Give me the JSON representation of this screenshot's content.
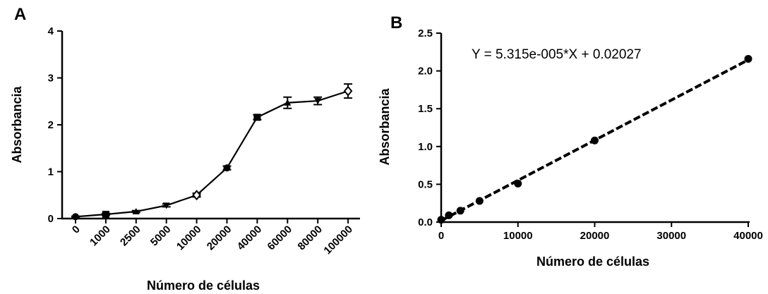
{
  "chart_data": [
    {
      "panel": "A",
      "type": "line",
      "xlabel": "Número de células",
      "ylabel": "Absorbancia",
      "categories": [
        "0",
        "1000",
        "2500",
        "5000",
        "10000",
        "20000",
        "40000",
        "60000",
        "80000",
        "100000"
      ],
      "ylim": [
        0,
        4
      ],
      "yticks": [
        "0",
        "1",
        "2",
        "3",
        "4"
      ],
      "markers": [
        "circle",
        "square",
        "triangle",
        "triangle-down",
        "diamond",
        "circle",
        "square",
        "triangle",
        "triangle-down",
        "diamond"
      ],
      "series": [
        {
          "values": [
            0.04,
            0.09,
            0.15,
            0.28,
            0.5,
            1.08,
            2.16,
            2.47,
            2.51,
            2.72
          ],
          "errors": [
            0.01,
            0.02,
            0.02,
            0.03,
            0.04,
            0.04,
            0.05,
            0.12,
            0.08,
            0.15
          ]
        }
      ],
      "grid": false,
      "legend": "none"
    },
    {
      "panel": "B",
      "type": "scatter",
      "xlabel": "Número de células",
      "ylabel": "Absorbancia",
      "xlim": [
        0,
        40000
      ],
      "ylim": [
        0,
        2.5
      ],
      "xticks": [
        "0",
        "10000",
        "20000",
        "30000",
        "40000"
      ],
      "yticks": [
        "0.0",
        "0.5",
        "1.0",
        "1.5",
        "2.0",
        "2.5"
      ],
      "points": {
        "x": [
          0,
          1000,
          2500,
          5000,
          10000,
          20000,
          40000
        ],
        "y": [
          0.03,
          0.09,
          0.15,
          0.28,
          0.51,
          1.08,
          2.16
        ]
      },
      "fit": {
        "type": "linear",
        "slope": 5.315e-05,
        "intercept": 0.02027,
        "equation": "Y = 5.315e-005*X + 0.02027",
        "style": "dashed"
      },
      "grid": false,
      "legend": "none"
    }
  ]
}
